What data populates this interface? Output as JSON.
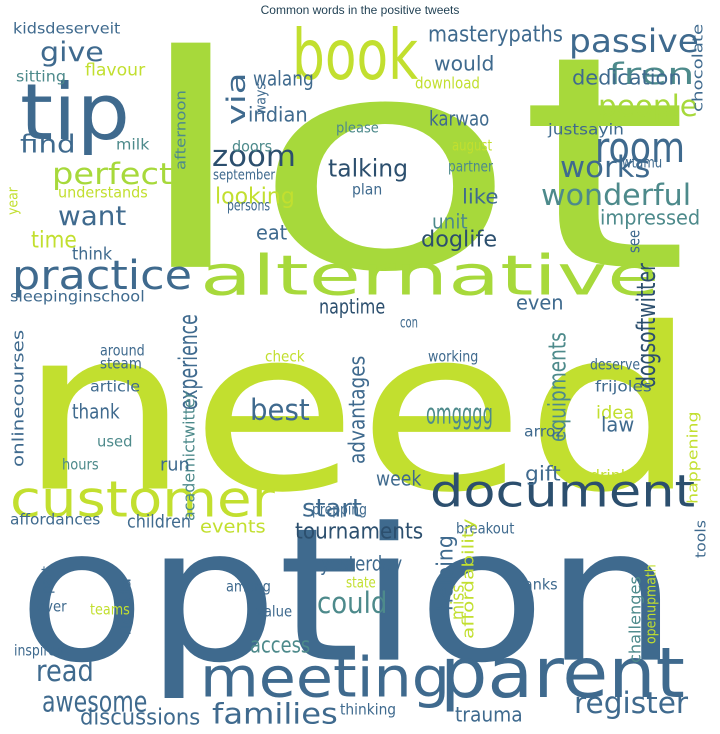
{
  "title": "Common words in the positive tweets",
  "words": [
    {
      "text": "lot",
      "color": "#a7d93b"
    },
    {
      "text": "need",
      "color": "#c2df2f"
    },
    {
      "text": "option",
      "color": "#3f6a8e"
    },
    {
      "text": "parent",
      "color": "#3f6a8e"
    },
    {
      "text": "meeting",
      "color": "#3f6a8e"
    },
    {
      "text": "document",
      "color": "#2c4f6e"
    },
    {
      "text": "customer",
      "color": "#c2df2f"
    },
    {
      "text": "alternative",
      "color": "#a7d93b"
    },
    {
      "text": "book",
      "color": "#c2df2f"
    },
    {
      "text": "tip",
      "color": "#3f6a8e"
    },
    {
      "text": "practice",
      "color": "#3f6a8e"
    },
    {
      "text": "room",
      "color": "#3f6a8e"
    },
    {
      "text": "passive",
      "color": "#3f6a8e"
    },
    {
      "text": "fren",
      "color": "#4d8a8b"
    },
    {
      "text": "people",
      "color": "#a7d93b"
    },
    {
      "text": "works",
      "color": "#3f6a8e"
    },
    {
      "text": "wonderful",
      "color": "#4d8a8b"
    },
    {
      "text": "zoom",
      "color": "#2c4f6e"
    },
    {
      "text": "perfect",
      "color": "#a7d93b"
    },
    {
      "text": "want",
      "color": "#3f6a8e"
    },
    {
      "text": "give",
      "color": "#3f6a8e"
    },
    {
      "text": "find",
      "color": "#3f6a8e"
    },
    {
      "text": "time",
      "color": "#c2df2f"
    },
    {
      "text": "via",
      "color": "#3f6a8e"
    },
    {
      "text": "talking",
      "color": "#2c4f6e"
    },
    {
      "text": "looking",
      "color": "#c2df2f"
    },
    {
      "text": "impressed",
      "color": "#4d8a8b"
    },
    {
      "text": "like",
      "color": "#3f6a8e"
    },
    {
      "text": "unit",
      "color": "#4d8a8b"
    },
    {
      "text": "doglife",
      "color": "#2c4f6e"
    },
    {
      "text": "eat",
      "color": "#3f6a8e"
    },
    {
      "text": "think",
      "color": "#3f6a8e"
    },
    {
      "text": "see",
      "color": "#3f6a8e"
    },
    {
      "text": "masterypaths",
      "color": "#3f6a8e"
    },
    {
      "text": "would",
      "color": "#3f6a8e"
    },
    {
      "text": "dedication",
      "color": "#3f6a8e"
    },
    {
      "text": "walang",
      "color": "#3f6a8e"
    },
    {
      "text": "flavour",
      "color": "#c2df2f"
    },
    {
      "text": "ways",
      "color": "#3f6a8e"
    },
    {
      "text": "indian",
      "color": "#3f6a8e"
    },
    {
      "text": "karwao",
      "color": "#3f6a8e"
    },
    {
      "text": "kidsdeserveit",
      "color": "#3f6a8e"
    },
    {
      "text": "chocolate",
      "color": "#3f6a8e"
    },
    {
      "text": "download",
      "color": "#c2df2f"
    },
    {
      "text": "sitting",
      "color": "#4d8a8b"
    },
    {
      "text": "afternoon",
      "color": "#4d8a8b"
    },
    {
      "text": "doors",
      "color": "#4d8a8b"
    },
    {
      "text": "please",
      "color": "#4d8a8b"
    },
    {
      "text": "justsayin",
      "color": "#3f6a8e"
    },
    {
      "text": "milk",
      "color": "#4d8a8b"
    },
    {
      "text": "august",
      "color": "#c2df2f"
    },
    {
      "text": "partner",
      "color": "#4d8a8b"
    },
    {
      "text": "wtamu",
      "color": "#3f6a8e"
    },
    {
      "text": "september",
      "color": "#3f6a8e"
    },
    {
      "text": "understands",
      "color": "#c2df2f"
    },
    {
      "text": "plan",
      "color": "#3f6a8e"
    },
    {
      "text": "persons",
      "color": "#3f6a8e"
    },
    {
      "text": "year",
      "color": "#c2df2f"
    },
    {
      "text": "sleepinginschool",
      "color": "#3f6a8e"
    },
    {
      "text": "naptime",
      "color": "#2c4f6e"
    },
    {
      "text": "even",
      "color": "#3f6a8e"
    },
    {
      "text": "dogsoftwitter",
      "color": "#2c4f6e"
    },
    {
      "text": "experience",
      "color": "#3f6a8e"
    },
    {
      "text": "advantages",
      "color": "#3f6a8e"
    },
    {
      "text": "equipments",
      "color": "#4d8a8b"
    },
    {
      "text": "con",
      "color": "#3f6a8e"
    },
    {
      "text": "onlinecourses",
      "color": "#3f6a8e"
    },
    {
      "text": "around",
      "color": "#3f6a8e"
    },
    {
      "text": "steam",
      "color": "#3f6a8e"
    },
    {
      "text": "check",
      "color": "#c2df2f"
    },
    {
      "text": "academictwitter",
      "color": "#4d8a8b"
    },
    {
      "text": "working",
      "color": "#3f6a8e"
    },
    {
      "text": "deserve",
      "color": "#3f6a8e"
    },
    {
      "text": "article",
      "color": "#3f6a8e"
    },
    {
      "text": "frijoles",
      "color": "#3f6a8e"
    },
    {
      "text": "best",
      "color": "#3f6a8e"
    },
    {
      "text": "thank",
      "color": "#3f6a8e"
    },
    {
      "text": "idea",
      "color": "#c2df2f"
    },
    {
      "text": "omgggg",
      "color": "#4d8a8b"
    },
    {
      "text": "law",
      "color": "#3f6a8e"
    },
    {
      "text": "arroz",
      "color": "#3f6a8e"
    },
    {
      "text": "used",
      "color": "#4d8a8b"
    },
    {
      "text": "happening",
      "color": "#c2df2f"
    },
    {
      "text": "run",
      "color": "#3f6a8e"
    },
    {
      "text": "hours",
      "color": "#4d8a8b"
    },
    {
      "text": "gift",
      "color": "#3f6a8e"
    },
    {
      "text": "drink",
      "color": "#c2df2f"
    },
    {
      "text": "week",
      "color": "#3f6a8e"
    },
    {
      "text": "prepping",
      "color": "#3f6a8e"
    },
    {
      "text": "affordances",
      "color": "#3f6a8e"
    },
    {
      "text": "children",
      "color": "#3f6a8e"
    },
    {
      "text": "events",
      "color": "#c2df2f"
    },
    {
      "text": "start",
      "color": "#3f6a8e"
    },
    {
      "text": "tournaments",
      "color": "#2c4f6e"
    },
    {
      "text": "breakout",
      "color": "#3f6a8e"
    },
    {
      "text": "tools",
      "color": "#3f6a8e"
    },
    {
      "text": "helping",
      "color": "#3f6a8e"
    },
    {
      "text": "miss",
      "color": "#c2df2f"
    },
    {
      "text": "affordability",
      "color": "#c2df2f"
    },
    {
      "text": "part",
      "color": "#3f6a8e"
    },
    {
      "text": "florida",
      "color": "#3f6a8e"
    },
    {
      "text": "among",
      "color": "#3f6a8e"
    },
    {
      "text": "yesterday",
      "color": "#3f6a8e"
    },
    {
      "text": "state",
      "color": "#c2df2f"
    },
    {
      "text": "could",
      "color": "#4d8a8b"
    },
    {
      "text": "openupmath",
      "color": "#c2df2f"
    },
    {
      "text": "challenges",
      "color": "#4d8a8b"
    },
    {
      "text": "ranks",
      "color": "#3f6a8e"
    },
    {
      "text": "teams",
      "color": "#c2df2f"
    },
    {
      "text": "ever",
      "color": "#3f6a8e"
    },
    {
      "text": "value",
      "color": "#3f6a8e"
    },
    {
      "text": "inspired",
      "color": "#3f6a8e"
    },
    {
      "text": "access",
      "color": "#4d8a8b"
    },
    {
      "text": "read",
      "color": "#3f6a8e"
    },
    {
      "text": "awesome",
      "color": "#3f6a8e"
    },
    {
      "text": "discussions",
      "color": "#3f6a8e"
    },
    {
      "text": "families",
      "color": "#3f6a8e"
    },
    {
      "text": "thinking",
      "color": "#3f6a8e"
    },
    {
      "text": "trauma",
      "color": "#3f6a8e"
    },
    {
      "text": "register",
      "color": "#3f6a8e"
    }
  ]
}
